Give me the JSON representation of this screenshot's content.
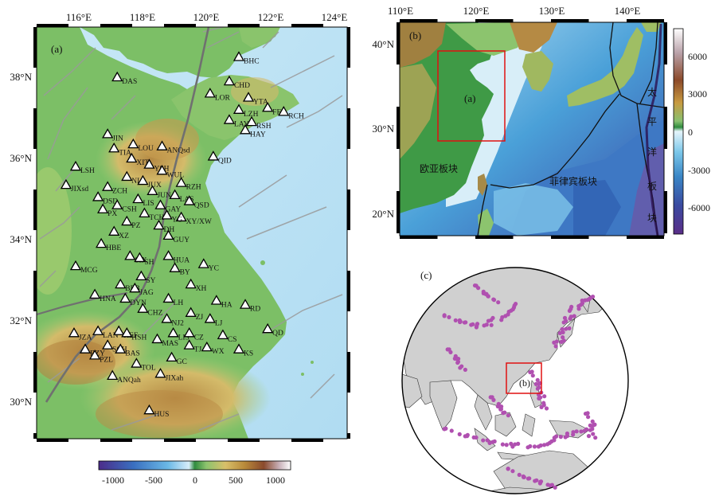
{
  "panel_a": {
    "label": "(a)",
    "x_ticks": [
      "116°E",
      "118°E",
      "120°E",
      "122°E",
      "124°E"
    ],
    "y_ticks": [
      "38°N",
      "36°N",
      "34°N",
      "32°N",
      "30°N"
    ],
    "stations": [
      {
        "code": "BHC",
        "lon": 121.0,
        "lat": 38.5
      },
      {
        "code": "DAS",
        "lon": 117.2,
        "lat": 38.0
      },
      {
        "code": "CHD",
        "lon": 120.7,
        "lat": 37.9
      },
      {
        "code": "LOR",
        "lon": 120.1,
        "lat": 37.6
      },
      {
        "code": "YTA",
        "lon": 121.3,
        "lat": 37.5
      },
      {
        "code": "LZH",
        "lon": 121.0,
        "lat": 37.2
      },
      {
        "code": "FEL",
        "lon": 121.9,
        "lat": 37.25
      },
      {
        "code": "RCH",
        "lon": 122.4,
        "lat": 37.15
      },
      {
        "code": "LAY",
        "lon": 120.7,
        "lat": 36.95
      },
      {
        "code": "RSH",
        "lon": 121.4,
        "lat": 36.9
      },
      {
        "code": "HAY",
        "lon": 121.2,
        "lat": 36.7
      },
      {
        "code": "JIN",
        "lon": 116.9,
        "lat": 36.6
      },
      {
        "code": "LOU",
        "lon": 117.7,
        "lat": 36.35
      },
      {
        "code": "TIA",
        "lon": 117.1,
        "lat": 36.25
      },
      {
        "code": "ANQsd",
        "lon": 118.6,
        "lat": 36.3
      },
      {
        "code": "XIT",
        "lon": 117.65,
        "lat": 36.0
      },
      {
        "code": "YSH",
        "lon": 118.2,
        "lat": 35.85
      },
      {
        "code": "QID",
        "lon": 120.2,
        "lat": 36.05
      },
      {
        "code": "WUL",
        "lon": 118.6,
        "lat": 35.7
      },
      {
        "code": "LSH",
        "lon": 115.9,
        "lat": 35.8
      },
      {
        "code": "NLA",
        "lon": 117.5,
        "lat": 35.55
      },
      {
        "code": "JUX",
        "lon": 118.0,
        "lat": 35.45
      },
      {
        "code": "RZH",
        "lon": 119.2,
        "lat": 35.4
      },
      {
        "code": "ZCH",
        "lon": 116.9,
        "lat": 35.3
      },
      {
        "code": "JIXsd",
        "lon": 115.6,
        "lat": 35.35
      },
      {
        "code": "JUN",
        "lon": 118.3,
        "lat": 35.2
      },
      {
        "code": "LAS",
        "lon": 119.0,
        "lat": 35.1
      },
      {
        "code": "DSD",
        "lon": 116.6,
        "lat": 35.05
      },
      {
        "code": "LIS",
        "lon": 117.85,
        "lat": 35.0
      },
      {
        "code": "GAY",
        "lon": 118.55,
        "lat": 34.85
      },
      {
        "code": "QSD",
        "lon": 119.45,
        "lat": 34.95
      },
      {
        "code": "CSH",
        "lon": 117.2,
        "lat": 34.85
      },
      {
        "code": "PX",
        "lon": 116.75,
        "lat": 34.75
      },
      {
        "code": "TCH",
        "lon": 118.05,
        "lat": 34.65
      },
      {
        "code": "XY/XW",
        "lon": 119.2,
        "lat": 34.55
      },
      {
        "code": "YG",
        "lon": 118.75,
        "lat": 34.6
      },
      {
        "code": "PZ",
        "lon": 117.5,
        "lat": 34.45
      },
      {
        "code": "DH",
        "lon": 118.5,
        "lat": 34.35
      },
      {
        "code": "XZ",
        "lon": 117.1,
        "lat": 34.2
      },
      {
        "code": "GUY",
        "lon": 118.8,
        "lat": 34.1
      },
      {
        "code": "HBE",
        "lon": 116.7,
        "lat": 33.9
      },
      {
        "code": "SIX",
        "lon": 117.6,
        "lat": 33.6
      },
      {
        "code": "SH",
        "lon": 117.9,
        "lat": 33.55
      },
      {
        "code": "HUA",
        "lon": 118.8,
        "lat": 33.6
      },
      {
        "code": "YC",
        "lon": 119.9,
        "lat": 33.4
      },
      {
        "code": "MCG",
        "lon": 115.9,
        "lat": 33.35
      },
      {
        "code": "BY",
        "lon": 119.0,
        "lat": 33.3
      },
      {
        "code": "SY",
        "lon": 117.95,
        "lat": 33.1
      },
      {
        "code": "BEB",
        "lon": 117.3,
        "lat": 32.9
      },
      {
        "code": "XH",
        "lon": 119.5,
        "lat": 32.9
      },
      {
        "code": "JAG",
        "lon": 117.75,
        "lat": 32.8
      },
      {
        "code": "HNA",
        "lon": 116.5,
        "lat": 32.65
      },
      {
        "code": "DYN",
        "lon": 117.45,
        "lat": 32.55
      },
      {
        "code": "LH",
        "lon": 118.8,
        "lat": 32.55
      },
      {
        "code": "HA",
        "lon": 120.3,
        "lat": 32.5
      },
      {
        "code": "RD",
        "lon": 121.2,
        "lat": 32.4
      },
      {
        "code": "CHZ",
        "lon": 118.0,
        "lat": 32.3
      },
      {
        "code": "ZJ",
        "lon": 119.5,
        "lat": 32.2
      },
      {
        "code": "NJ2",
        "lon": 118.75,
        "lat": 32.05
      },
      {
        "code": "LJ",
        "lon": 120.1,
        "lat": 32.05
      },
      {
        "code": "LAN",
        "lon": 116.6,
        "lat": 31.75
      },
      {
        "code": "HEF",
        "lon": 117.25,
        "lat": 31.75
      },
      {
        "code": "JZA",
        "lon": 115.85,
        "lat": 31.7
      },
      {
        "code": "HSH",
        "lon": 117.5,
        "lat": 31.7
      },
      {
        "code": "LIS2",
        "label": "LIS",
        "lon": 118.95,
        "lat": 31.7
      },
      {
        "code": "CZ",
        "lon": 119.45,
        "lat": 31.7
      },
      {
        "code": "CS",
        "lon": 120.5,
        "lat": 31.65
      },
      {
        "code": "QD",
        "lon": 121.9,
        "lat": 31.8
      },
      {
        "code": "MAS",
        "lon": 118.45,
        "lat": 31.55
      },
      {
        "code": "TJ",
        "lon": 119.45,
        "lat": 31.4
      },
      {
        "code": "SCH",
        "lon": 116.9,
        "lat": 31.4
      },
      {
        "code": "BZY",
        "lon": 116.2,
        "lat": 31.3
      },
      {
        "code": "WX",
        "lon": 120.0,
        "lat": 31.35
      },
      {
        "code": "KS",
        "lon": 121.0,
        "lat": 31.3
      },
      {
        "code": "BAS",
        "lon": 117.3,
        "lat": 31.3
      },
      {
        "code": "PZL",
        "lon": 116.5,
        "lat": 31.15
      },
      {
        "code": "GC",
        "lon": 118.9,
        "lat": 31.1
      },
      {
        "code": "TOL",
        "lon": 117.8,
        "lat": 30.95
      },
      {
        "code": "ANQah",
        "lon": 117.05,
        "lat": 30.65
      },
      {
        "code": "JIXah",
        "lon": 118.55,
        "lat": 30.7
      },
      {
        "code": "HUS",
        "lon": 118.2,
        "lat": 29.8
      }
    ],
    "colorbar": {
      "ticks": [
        "-1000",
        "-500",
        "0",
        "500",
        "1000"
      ]
    }
  },
  "panel_b": {
    "label": "(b)",
    "x_ticks": [
      "110°E",
      "120°E",
      "130°E",
      "140°E"
    ],
    "y_ticks": [
      "40°N",
      "30°N",
      "20°N"
    ],
    "inset_label": "(a)",
    "plate_eurasia": "欧亚板块",
    "plate_philippine": "菲律宾板块",
    "plate_pacific_chars": [
      "太",
      "平",
      "洋",
      "板",
      "块"
    ],
    "colorbar": {
      "ticks": [
        "6000",
        "3000",
        "0",
        "-3000",
        "-6000"
      ]
    }
  },
  "panel_c": {
    "label": "(c)",
    "inset_label": "(b)"
  },
  "colors": {
    "station_fill": "#ffffff",
    "station_stroke": "#000000",
    "inset_box": "#e01010",
    "quake_dot": "#b050b0",
    "land_c": "#d0d0d0"
  }
}
